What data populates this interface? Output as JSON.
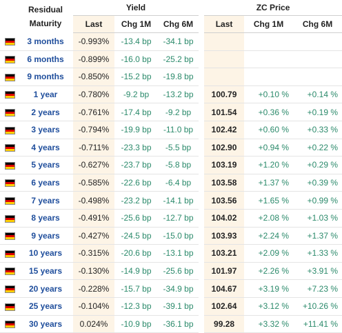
{
  "header": {
    "residual_line1": "Residual",
    "residual_line2": "Maturity",
    "yield_group": "Yield",
    "zc_group": "ZC Price",
    "last": "Last",
    "chg1m": "Chg 1M",
    "chg6m": "Chg 6M",
    "zc_last": "Last",
    "zc_chg1m": "Chg 1M",
    "zc_chg6m": "Chg 6M"
  },
  "flag": {
    "icon": "germany-flag-icon",
    "colors": [
      "#000000",
      "#dd0000",
      "#ffce00"
    ]
  },
  "colors": {
    "maturity_link": "#1f4e9c",
    "positive": "#2b8a6b",
    "highlight": "#fdf4e6"
  },
  "rows": [
    {
      "maturity": "3 months",
      "last": "-0.993%",
      "chg1m": "-13.4 bp",
      "chg6m": "-34.1 bp",
      "zc_last": "",
      "zc_chg1m": "",
      "zc_chg6m": ""
    },
    {
      "maturity": "6 months",
      "last": "-0.899%",
      "chg1m": "-16.0 bp",
      "chg6m": "-25.2 bp",
      "zc_last": "",
      "zc_chg1m": "",
      "zc_chg6m": ""
    },
    {
      "maturity": "9 months",
      "last": "-0.850%",
      "chg1m": "-15.2 bp",
      "chg6m": "-19.8 bp",
      "zc_last": "",
      "zc_chg1m": "",
      "zc_chg6m": ""
    },
    {
      "maturity": "1 year",
      "last": "-0.780%",
      "chg1m": "-9.2 bp",
      "chg6m": "-13.2 bp",
      "zc_last": "100.79",
      "zc_chg1m": "+0.10 %",
      "zc_chg6m": "+0.14 %"
    },
    {
      "maturity": "2 years",
      "last": "-0.761%",
      "chg1m": "-17.4 bp",
      "chg6m": "-9.2 bp",
      "zc_last": "101.54",
      "zc_chg1m": "+0.36 %",
      "zc_chg6m": "+0.19 %"
    },
    {
      "maturity": "3 years",
      "last": "-0.794%",
      "chg1m": "-19.9 bp",
      "chg6m": "-11.0 bp",
      "zc_last": "102.42",
      "zc_chg1m": "+0.60 %",
      "zc_chg6m": "+0.33 %"
    },
    {
      "maturity": "4 years",
      "last": "-0.711%",
      "chg1m": "-23.3 bp",
      "chg6m": "-5.5 bp",
      "zc_last": "102.90",
      "zc_chg1m": "+0.94 %",
      "zc_chg6m": "+0.22 %"
    },
    {
      "maturity": "5 years",
      "last": "-0.627%",
      "chg1m": "-23.7 bp",
      "chg6m": "-5.8 bp",
      "zc_last": "103.19",
      "zc_chg1m": "+1.20 %",
      "zc_chg6m": "+0.29 %"
    },
    {
      "maturity": "6 years",
      "last": "-0.585%",
      "chg1m": "-22.6 bp",
      "chg6m": "-6.4 bp",
      "zc_last": "103.58",
      "zc_chg1m": "+1.37 %",
      "zc_chg6m": "+0.39 %"
    },
    {
      "maturity": "7 years",
      "last": "-0.498%",
      "chg1m": "-23.2 bp",
      "chg6m": "-14.1 bp",
      "zc_last": "103.56",
      "zc_chg1m": "+1.65 %",
      "zc_chg6m": "+0.99 %"
    },
    {
      "maturity": "8 years",
      "last": "-0.491%",
      "chg1m": "-25.6 bp",
      "chg6m": "-12.7 bp",
      "zc_last": "104.02",
      "zc_chg1m": "+2.08 %",
      "zc_chg6m": "+1.03 %"
    },
    {
      "maturity": "9 years",
      "last": "-0.427%",
      "chg1m": "-24.5 bp",
      "chg6m": "-15.0 bp",
      "zc_last": "103.93",
      "zc_chg1m": "+2.24 %",
      "zc_chg6m": "+1.37 %"
    },
    {
      "maturity": "10 years",
      "last": "-0.315%",
      "chg1m": "-20.6 bp",
      "chg6m": "-13.1 bp",
      "zc_last": "103.21",
      "zc_chg1m": "+2.09 %",
      "zc_chg6m": "+1.33 %"
    },
    {
      "maturity": "15 years",
      "last": "-0.130%",
      "chg1m": "-14.9 bp",
      "chg6m": "-25.6 bp",
      "zc_last": "101.97",
      "zc_chg1m": "+2.26 %",
      "zc_chg6m": "+3.91 %"
    },
    {
      "maturity": "20 years",
      "last": "-0.228%",
      "chg1m": "-15.7 bp",
      "chg6m": "-34.9 bp",
      "zc_last": "104.67",
      "zc_chg1m": "+3.19 %",
      "zc_chg6m": "+7.23 %"
    },
    {
      "maturity": "25 years",
      "last": "-0.104%",
      "chg1m": "-12.3 bp",
      "chg6m": "-39.1 bp",
      "zc_last": "102.64",
      "zc_chg1m": "+3.12 %",
      "zc_chg6m": "+10.26 %"
    },
    {
      "maturity": "30 years",
      "last": "0.024%",
      "chg1m": "-10.9 bp",
      "chg6m": "-36.1 bp",
      "zc_last": "99.28",
      "zc_chg1m": "+3.32 %",
      "zc_chg6m": "+11.41 %"
    }
  ]
}
